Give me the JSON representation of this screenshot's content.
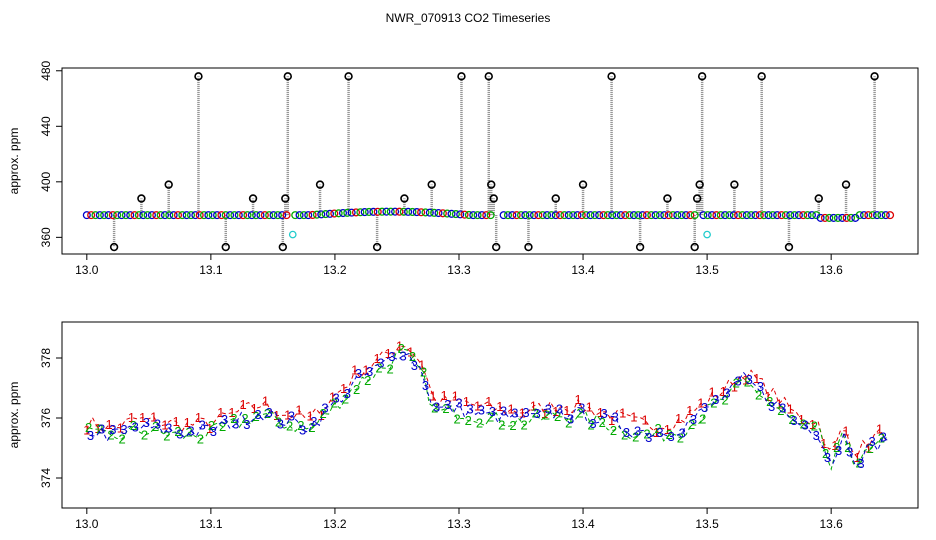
{
  "chart_data": {
    "title": "NWR_070913  CO2 Timeseries",
    "panels": [
      {
        "type": "scatter",
        "ylabel": "approx. ppm",
        "xlim": [
          12.98,
          13.67
        ],
        "ylim": [
          348,
          482
        ],
        "xticks": [
          "13.0",
          "13.1",
          "13.2",
          "13.3",
          "13.4",
          "13.5",
          "13.6"
        ],
        "yticks": [
          "360",
          "400",
          "440",
          "480"
        ],
        "baseline_ppm": 376,
        "gap_intervals": [
          [
            13.163,
            13.166
          ],
          [
            13.327,
            13.333
          ],
          [
            13.493,
            13.497
          ]
        ],
        "outliers_high": [
          {
            "x": 13.09,
            "y": 476
          },
          {
            "x": 13.162,
            "y": 476
          },
          {
            "x": 13.211,
            "y": 476
          },
          {
            "x": 13.302,
            "y": 476
          },
          {
            "x": 13.324,
            "y": 476
          },
          {
            "x": 13.423,
            "y": 476
          },
          {
            "x": 13.496,
            "y": 476
          },
          {
            "x": 13.544,
            "y": 476
          },
          {
            "x": 13.635,
            "y": 476
          }
        ],
        "outliers_mid": [
          {
            "x": 13.044,
            "y": 388
          },
          {
            "x": 13.066,
            "y": 398
          },
          {
            "x": 13.134,
            "y": 388
          },
          {
            "x": 13.16,
            "y": 388
          },
          {
            "x": 13.188,
            "y": 398
          },
          {
            "x": 13.256,
            "y": 388
          },
          {
            "x": 13.278,
            "y": 398
          },
          {
            "x": 13.326,
            "y": 398
          },
          {
            "x": 13.328,
            "y": 388
          },
          {
            "x": 13.378,
            "y": 388
          },
          {
            "x": 13.4,
            "y": 398
          },
          {
            "x": 13.468,
            "y": 388
          },
          {
            "x": 13.492,
            "y": 388
          },
          {
            "x": 13.494,
            "y": 398
          },
          {
            "x": 13.522,
            "y": 398
          },
          {
            "x": 13.59,
            "y": 388
          },
          {
            "x": 13.612,
            "y": 398
          }
        ],
        "outliers_low": [
          {
            "x": 13.022,
            "y": 353
          },
          {
            "x": 13.112,
            "y": 353
          },
          {
            "x": 13.158,
            "y": 353
          },
          {
            "x": 13.234,
            "y": 353
          },
          {
            "x": 13.33,
            "y": 353
          },
          {
            "x": 13.356,
            "y": 353
          },
          {
            "x": 13.446,
            "y": 353
          },
          {
            "x": 13.49,
            "y": 353
          },
          {
            "x": 13.566,
            "y": 353
          }
        ],
        "cyan_points": [
          {
            "x": 13.166,
            "y": 362
          },
          {
            "x": 13.5,
            "y": 362
          }
        ]
      },
      {
        "type": "line",
        "ylabel": "approx. ppm",
        "xlim": [
          12.98,
          13.67
        ],
        "ylim": [
          373,
          379.2
        ],
        "xticks": [
          "13.0",
          "13.1",
          "13.2",
          "13.3",
          "13.4",
          "13.5",
          "13.6"
        ],
        "yticks": [
          "374",
          "376",
          "378"
        ],
        "series": [
          {
            "name": "1",
            "color": "#dd0000"
          },
          {
            "name": "2",
            "color": "#00aa00"
          },
          {
            "name": "3",
            "color": "#0000cc"
          }
        ],
        "curve_x": [
          13.0,
          13.02,
          13.04,
          13.06,
          13.08,
          13.1,
          13.12,
          13.14,
          13.16,
          13.18,
          13.2,
          13.22,
          13.24,
          13.255,
          13.27,
          13.28,
          13.3,
          13.32,
          13.34,
          13.36,
          13.38,
          13.4,
          13.42,
          13.44,
          13.46,
          13.48,
          13.5,
          13.52,
          13.53,
          13.54,
          13.555,
          13.57,
          13.59,
          13.6,
          13.61,
          13.62,
          13.635,
          13.645
        ],
        "curve_y": [
          375.6,
          375.4,
          375.7,
          375.6,
          375.5,
          375.6,
          375.9,
          376.2,
          375.9,
          375.7,
          376.5,
          377.3,
          377.8,
          378.3,
          377.6,
          376.3,
          376.3,
          376.1,
          376.0,
          376.0,
          376.2,
          376.1,
          375.9,
          375.6,
          375.5,
          375.7,
          376.3,
          376.9,
          377.3,
          377.0,
          376.5,
          375.9,
          375.6,
          374.4,
          375.5,
          374.6,
          375.1,
          375.3
        ],
        "noise_seed": 7
      }
    ]
  }
}
